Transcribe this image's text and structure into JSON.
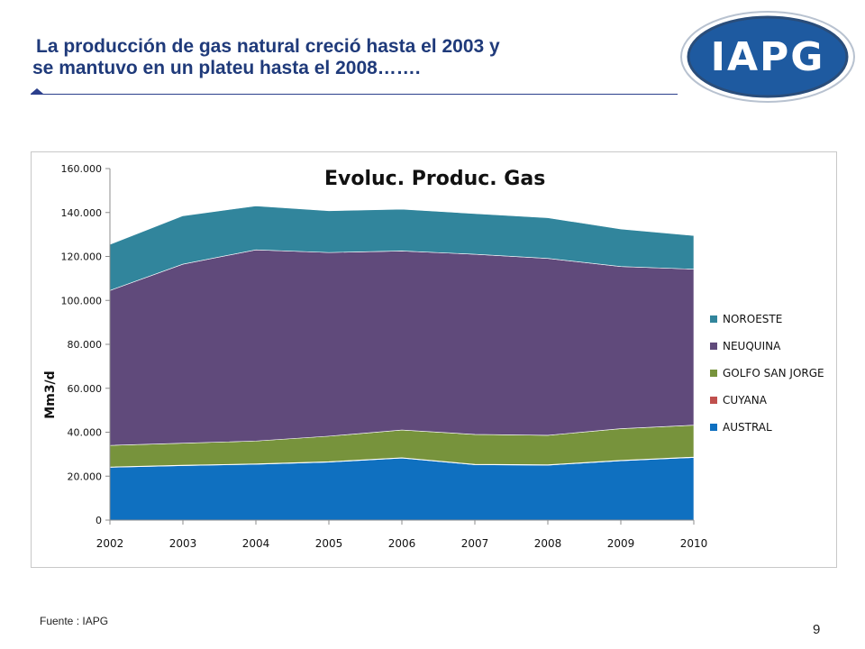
{
  "slide": {
    "title_line1": "La producción de gas natural creció  hasta el 2003 y",
    "title_line2": "se mantuvo en un plateu hasta el 2008…….",
    "logo_text": "IAPG",
    "source": "Fuente :  IAPG",
    "page_number": "9"
  },
  "colors": {
    "title": "#1f3a7a",
    "logo_fill": "#1e5aa0",
    "logo_ring": "#2a4d7a"
  },
  "chart_data": {
    "type": "area",
    "stacked": true,
    "title": "Evoluc. Produc. Gas",
    "ylabel": "Mm3/d",
    "xlabel": "",
    "ylim": [
      0,
      160000
    ],
    "yticks": [
      0,
      20000,
      40000,
      60000,
      80000,
      100000,
      120000,
      140000,
      160000
    ],
    "ytick_labels": [
      "0",
      "20.000",
      "40.000",
      "60.000",
      "80.000",
      "100.000",
      "120.000",
      "140.000",
      "160.000"
    ],
    "categories": [
      "2002",
      "2003",
      "2004",
      "2005",
      "2006",
      "2007",
      "2008",
      "2009",
      "2010"
    ],
    "legend_position": "right",
    "grid": false,
    "series": [
      {
        "name": "AUSTRAL",
        "color": "#0f70c0",
        "values": [
          24000,
          24800,
          25400,
          26400,
          28200,
          25200,
          25000,
          27000,
          28500
        ]
      },
      {
        "name": "CUYANA",
        "color": "#c0504d",
        "values": [
          200,
          200,
          200,
          200,
          200,
          200,
          200,
          200,
          200
        ]
      },
      {
        "name": "GOLFO SAN JORGE",
        "color": "#77933c",
        "values": [
          9800,
          10000,
          10400,
          11600,
          12600,
          13600,
          13400,
          14400,
          14500
        ]
      },
      {
        "name": "NEUQUINA",
        "color": "#604a7b",
        "values": [
          70500,
          81500,
          87000,
          83600,
          81500,
          82000,
          80500,
          73800,
          71000
        ]
      },
      {
        "name": "NOROESTE",
        "color": "#31859c",
        "values": [
          21000,
          22000,
          20000,
          19000,
          19000,
          18500,
          18500,
          17100,
          15300
        ]
      }
    ],
    "legend_order": [
      "NOROESTE",
      "NEUQUINA",
      "GOLFO SAN JORGE",
      "CUYANA",
      "AUSTRAL"
    ]
  }
}
